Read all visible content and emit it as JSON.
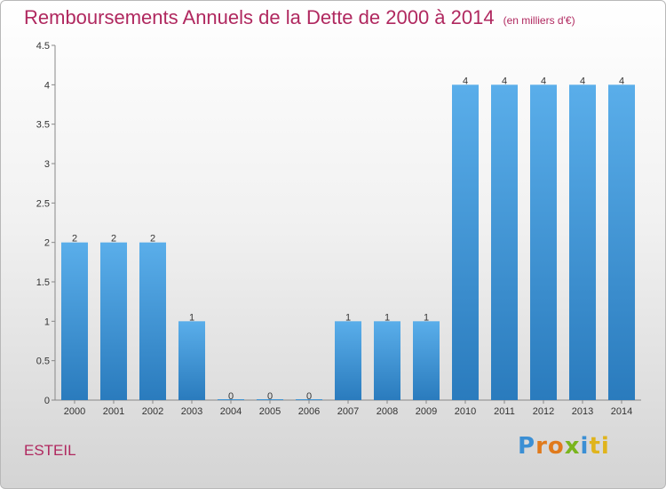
{
  "header": {
    "title": "Remboursements Annuels de la Dette de 2000 à 2014",
    "subtitle": "(en milliers d'€)"
  },
  "commune": "ESTEIL",
  "logo": {
    "letters": [
      "P",
      "r",
      "o",
      "x",
      "i",
      "ti"
    ]
  },
  "colors": {
    "title": "#b0285f",
    "bar_top": "#5aaeea",
    "bar_bottom": "#2a7bbd"
  },
  "chart_data": {
    "type": "bar",
    "categories": [
      "2000",
      "2001",
      "2002",
      "2003",
      "2004",
      "2005",
      "2006",
      "2007",
      "2008",
      "2009",
      "2010",
      "2011",
      "2012",
      "2013",
      "2014"
    ],
    "values": [
      2,
      2,
      2,
      1,
      0,
      0,
      0,
      1,
      1,
      1,
      4,
      4,
      4,
      4,
      4
    ],
    "data_labels": [
      "2",
      "2",
      "2",
      "1",
      "0",
      "0",
      "0",
      "1",
      "1",
      "1",
      "4",
      "4",
      "4",
      "4",
      "4"
    ],
    "title": "Remboursements Annuels de la Dette de 2000 à 2014",
    "subtitle": "(en milliers d'€)",
    "xlabel": "",
    "ylabel": "",
    "ylim": [
      0,
      4.5
    ],
    "yticks": [
      "0",
      "0.5",
      "1",
      "1.5",
      "2",
      "2.5",
      "3",
      "3.5",
      "4",
      "4.5"
    ],
    "grid": false,
    "legend": "none"
  }
}
